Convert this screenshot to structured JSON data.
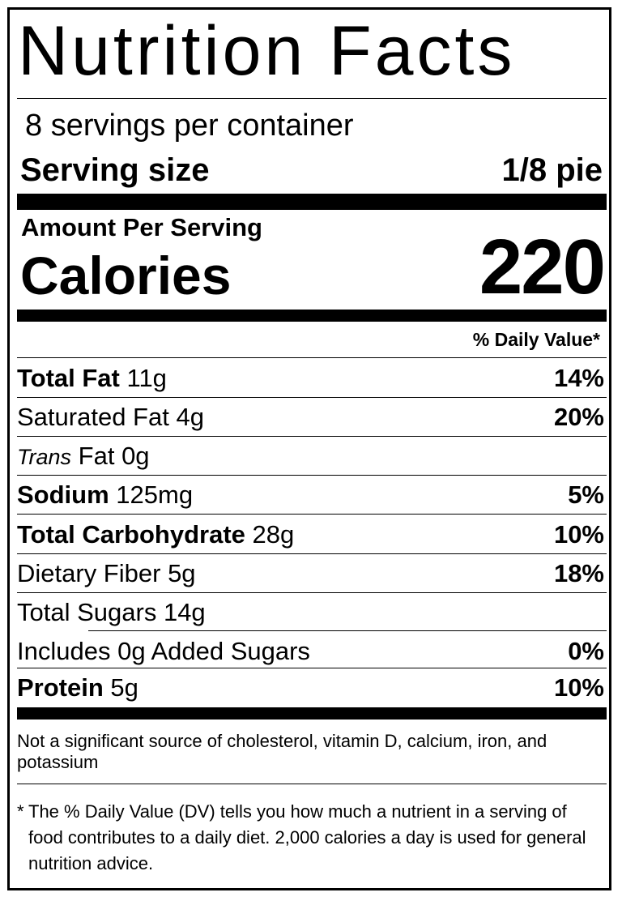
{
  "title": "Nutrition Facts",
  "servings_per_container": "8 servings per container",
  "serving_size": {
    "label": "Serving size",
    "value": "1/8 pie"
  },
  "amount_per_serving": "Amount Per Serving",
  "calories": {
    "label": "Calories",
    "value": "220"
  },
  "dv_header": "% Daily Value*",
  "nutrients": [
    {
      "name": "Total Fat",
      "amount": "11g",
      "dv": "14%"
    },
    {
      "name": "Saturated Fat",
      "amount": "4g",
      "dv": "20%"
    },
    {
      "name_italic": "Trans",
      "name": "Fat",
      "amount": "0g",
      "dv": ""
    },
    {
      "name": "Sodium",
      "amount": "125mg",
      "dv": "5%"
    },
    {
      "name": "Total Carbohydrate",
      "amount": "28g",
      "dv": "10%"
    },
    {
      "name": "Dietary Fiber",
      "amount": "5g",
      "dv": "18%"
    },
    {
      "name": "Total Sugars",
      "amount": "14g",
      "dv": ""
    },
    {
      "name": "Includes 0g Added Sugars",
      "amount": "",
      "dv": "0%"
    },
    {
      "name": "Protein",
      "amount": "5g",
      "dv": "10%"
    }
  ],
  "footnote_not_significant": "Not a significant source of cholesterol, vitamin D, calcium, iron, and potassium",
  "footnote_star": "*",
  "footnote_dv": "The % Daily Value (DV) tells you how much a nutrient in a serving of food contributes to a daily diet. 2,000 calories a day is used for general nutrition advice."
}
